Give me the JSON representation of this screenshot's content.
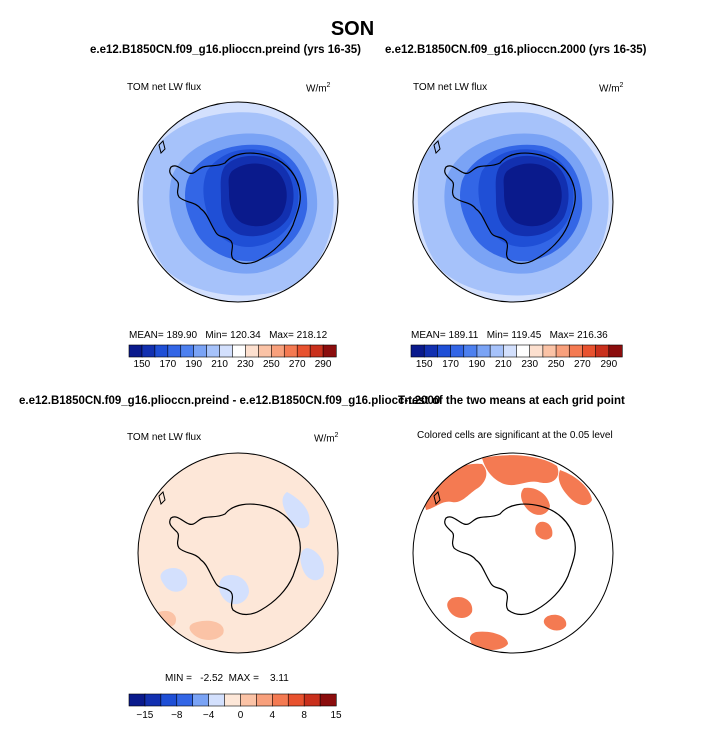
{
  "figure": {
    "title": "SON",
    "panels": [
      {
        "title": "e.e12.B1850CN.f09_g16.plioccn.preind (yrs 16-35)",
        "variable": "TOM net LW flux",
        "units": "W/m",
        "units_sup": "2",
        "stats": "MEAN= 189.90   Min= 120.34   Max= 218.12"
      },
      {
        "title": "e.e12.B1850CN.f09_g16.plioccn.2000 (yrs 16-35)",
        "variable": "TOM net LW flux",
        "units": "W/m",
        "units_sup": "2",
        "stats": "MEAN= 189.11   Min= 119.45   Max= 216.36"
      },
      {
        "title": "e.e12.B1850CN.f09_g16.plioccn.preind - e.e12.B1850CN.f09_g16.plioccn.2000",
        "variable": "TOM net LW flux",
        "units": "W/m",
        "units_sup": "2",
        "stats": "MIN =   -2.52  MAX =    3.11"
      },
      {
        "title": "T-test of the two means at each grid point",
        "subtitle": "Colored cells are significant at the 0.05 level"
      }
    ]
  },
  "chart_data": [
    {
      "type": "heatmap",
      "projection": "south-polar-stereographic",
      "title": "e.e12.B1850CN.f09_g16.plioccn.preind (yrs 16-35)",
      "variable": "TOM net LW flux",
      "units": "W/m2",
      "mean": 189.9,
      "min": 120.34,
      "max": 218.12,
      "colorbar": {
        "levels": [
          150,
          160,
          170,
          180,
          190,
          200,
          210,
          220,
          230,
          240,
          250,
          260,
          270,
          280,
          290
        ],
        "tick_labels": [
          "150",
          "170",
          "190",
          "210",
          "230",
          "250",
          "270",
          "290"
        ],
        "colors": [
          "#0a1a8c",
          "#1230b0",
          "#1f4fd6",
          "#3366e6",
          "#4d80ef",
          "#7aa3f5",
          "#a6c2fa",
          "#d3e0fd",
          "#ffffff",
          "#fde0cf",
          "#fbc3a6",
          "#f8a07c",
          "#f47a52",
          "#e8522f",
          "#c9301c",
          "#8b0d0d"
        ]
      }
    },
    {
      "type": "heatmap",
      "projection": "south-polar-stereographic",
      "title": "e.e12.B1850CN.f09_g16.plioccn.2000 (yrs 16-35)",
      "variable": "TOM net LW flux",
      "units": "W/m2",
      "mean": 189.11,
      "min": 119.45,
      "max": 216.36,
      "colorbar": {
        "levels": [
          150,
          160,
          170,
          180,
          190,
          200,
          210,
          220,
          230,
          240,
          250,
          260,
          270,
          280,
          290
        ],
        "tick_labels": [
          "150",
          "170",
          "190",
          "210",
          "230",
          "250",
          "270",
          "290"
        ],
        "colors": [
          "#0a1a8c",
          "#1230b0",
          "#1f4fd6",
          "#3366e6",
          "#4d80ef",
          "#7aa3f5",
          "#a6c2fa",
          "#d3e0fd",
          "#ffffff",
          "#fde0cf",
          "#fbc3a6",
          "#f8a07c",
          "#f47a52",
          "#e8522f",
          "#c9301c",
          "#8b0d0d"
        ]
      }
    },
    {
      "type": "heatmap",
      "projection": "south-polar-stereographic",
      "title": "e.e12.B1850CN.f09_g16.plioccn.preind - e.e12.B1850CN.f09_g16.plioccn.2000",
      "variable": "TOM net LW flux",
      "units": "W/m2",
      "min": -2.52,
      "max": 3.11,
      "colorbar": {
        "levels": [
          -15,
          -10,
          -8,
          -6,
          -4,
          -2,
          0,
          2,
          4,
          6,
          8,
          10,
          15
        ],
        "tick_labels": [
          "-15",
          "-8",
          "-4",
          "0",
          "4",
          "8",
          "15"
        ],
        "colors": [
          "#0a1a8c",
          "#1230b0",
          "#1f4fd6",
          "#3366e6",
          "#7aa3f5",
          "#d3e0fd",
          "#fde7d8",
          "#fbc3a6",
          "#f8a07c",
          "#f47a52",
          "#e8522f",
          "#c9301c",
          "#8b0d0d"
        ]
      }
    },
    {
      "type": "heatmap",
      "projection": "south-polar-stereographic",
      "title": "T-test of the two means at each grid point",
      "subtitle": "Colored cells are significant at the 0.05 level",
      "significance_level": 0.05,
      "colors": [
        "#ffffff",
        "#f47a52"
      ]
    }
  ]
}
